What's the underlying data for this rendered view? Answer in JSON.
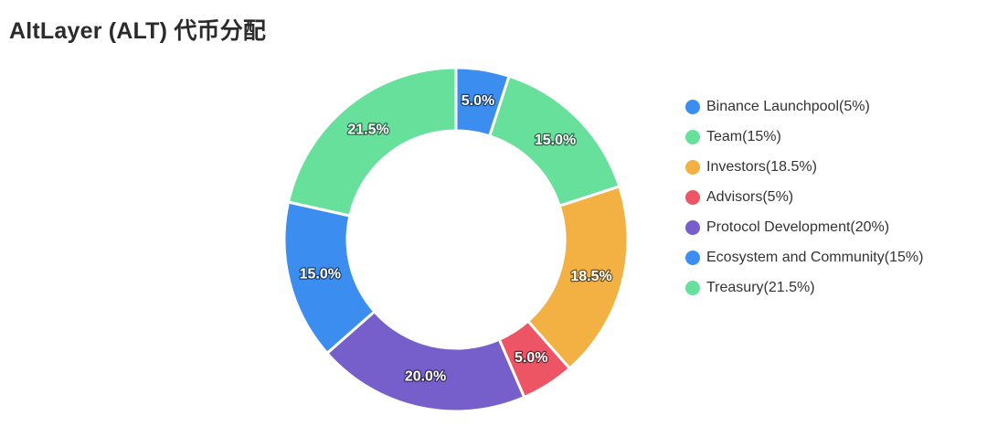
{
  "chart_data": {
    "type": "pie",
    "title": "AltLayer (ALT) 代币分配",
    "donut": true,
    "legend_position": "right",
    "categories": [
      "Binance Launchpool(5%)",
      "Team(15%)",
      "Investors(18.5%)",
      "Advisors(5%)",
      "Protocol Development(20%)",
      "Ecosystem and Community(15%)",
      "Treasury(21.5%)"
    ],
    "values": [
      5,
      15,
      18.5,
      5,
      20,
      15,
      21.5
    ],
    "data_labels": [
      "5.0%",
      "15.0%",
      "18.5%",
      "5.0%",
      "20.0%",
      "15.0%",
      "21.5%"
    ],
    "colors": [
      "#3b8ef0",
      "#67e09b",
      "#f2b142",
      "#ed5565",
      "#775fcb",
      "#3b8ef0",
      "#67e09b"
    ]
  }
}
